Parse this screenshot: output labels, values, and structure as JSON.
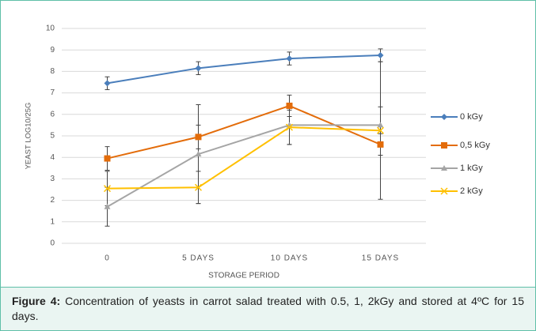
{
  "chart_data": {
    "type": "line",
    "y_label": "YEAST LOG10/25G",
    "x_label": "STORAGE PERIOD",
    "categories": [
      "0",
      "5 DAYS",
      "10 DAYS",
      "15 DAYS"
    ],
    "series": [
      {
        "name": "0 kGy",
        "color": "#4a7ebb",
        "marker": "diamond",
        "values": [
          7.45,
          8.15,
          8.6,
          8.75
        ],
        "errors": [
          0.3,
          0.3,
          0.3,
          0.3
        ]
      },
      {
        "name": "0,5 kGy",
        "color": "#e36c0a",
        "marker": "square",
        "values": [
          3.95,
          4.95,
          6.4,
          4.6
        ],
        "errors": [
          0.55,
          0.55,
          0.5,
          0.5
        ]
      },
      {
        "name": "1 kGy",
        "color": "#a5a5a5",
        "marker": "triangle",
        "values": [
          1.7,
          4.15,
          5.5,
          5.5
        ],
        "errors": [
          0.9,
          2.3,
          0.9,
          0.85
        ]
      },
      {
        "name": "2 kGy",
        "color": "#ffc000",
        "marker": "x",
        "values": [
          2.55,
          2.6,
          5.4,
          5.25
        ],
        "errors": [
          0.8,
          0.75,
          0.8,
          3.2
        ]
      }
    ],
    "ylim": [
      0,
      10
    ],
    "yticks": [
      0,
      1,
      2,
      3,
      4,
      5,
      6,
      7,
      8,
      9,
      10
    ],
    "grid": true,
    "legend": "right"
  },
  "caption": {
    "label": "Figure 4:",
    "text": "Concentration of yeasts in carrot salad treated with 0.5, 1, 2kGy and stored at 4ºC for 15 days."
  }
}
